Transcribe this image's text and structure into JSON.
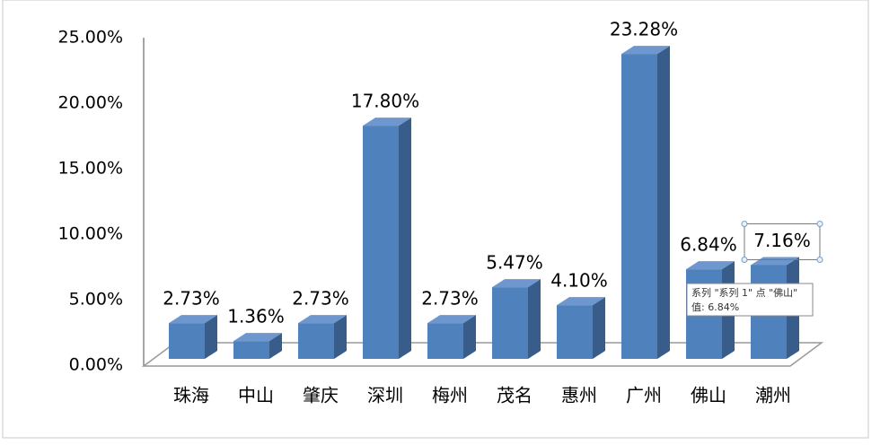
{
  "chart_data": {
    "type": "bar3d",
    "categories": [
      "珠海",
      "中山",
      "肇庆",
      "深圳",
      "梅州",
      "茂名",
      "惠州",
      "广州",
      "佛山",
      "潮州"
    ],
    "values": [
      2.73,
      1.36,
      2.73,
      17.8,
      2.73,
      5.47,
      4.1,
      23.28,
      6.84,
      7.16
    ],
    "value_labels": [
      "2.73%",
      "1.36%",
      "2.73%",
      "17.80%",
      "2.73%",
      "5.47%",
      "4.10%",
      "23.28%",
      "6.84%",
      "7.16%"
    ],
    "color": "#4f81bd",
    "ylim": [
      0,
      25
    ],
    "yticks": [
      {
        "value": 0,
        "label": "0.00%"
      },
      {
        "value": 5,
        "label": "5.00%"
      },
      {
        "value": 10,
        "label": "10.00%"
      },
      {
        "value": 15,
        "label": "15.00%"
      },
      {
        "value": 20,
        "label": "20.00%"
      },
      {
        "value": 25,
        "label": "25.00%"
      }
    ],
    "tooltip": {
      "line1": "系列 \"系列 1\" 点 \"佛山\"",
      "line2": "值: 6.84%"
    }
  }
}
